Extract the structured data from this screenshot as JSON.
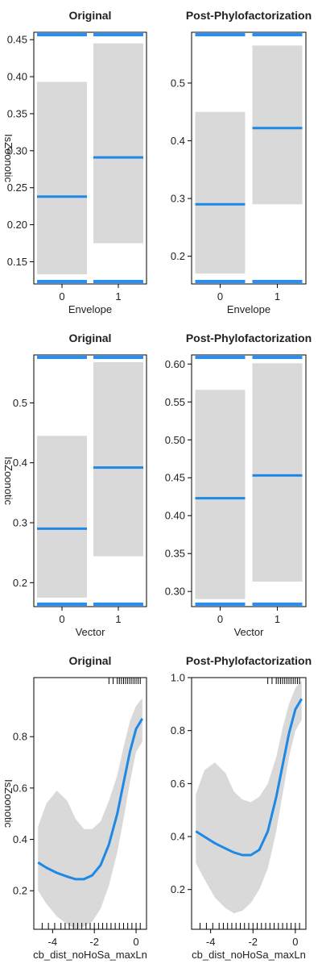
{
  "colors": {
    "fit": "#1e88e5",
    "band": "#d9d9d9",
    "rug": "#1e90ff",
    "axis": "#000000",
    "text": "#222222"
  },
  "chart_data": [
    {
      "type": "bar",
      "title": "Original",
      "xlabel": "Envelope",
      "ylabel": "IsZoonotic",
      "categories": [
        "0",
        "1"
      ],
      "fit": [
        0.238,
        0.291
      ],
      "lower": [
        0.133,
        0.175
      ],
      "upper": [
        0.393,
        0.445
      ],
      "ylim": [
        0.12,
        0.46
      ],
      "yticks": [
        0.15,
        0.2,
        0.25,
        0.3,
        0.35,
        0.4,
        0.45
      ],
      "ytick_labels": [
        "0.15",
        "0.20",
        "0.25",
        "0.30",
        "0.35",
        "0.40",
        "0.45"
      ]
    },
    {
      "type": "bar",
      "title": "Post-Phylofactorization",
      "xlabel": "Envelope",
      "ylabel": "",
      "categories": [
        "0",
        "1"
      ],
      "fit": [
        0.29,
        0.422
      ],
      "lower": [
        0.17,
        0.29
      ],
      "upper": [
        0.45,
        0.565
      ],
      "ylim": [
        0.152,
        0.588
      ],
      "yticks": [
        0.2,
        0.3,
        0.4,
        0.5
      ],
      "ytick_labels": [
        "0.2",
        "0.3",
        "0.4",
        "0.5"
      ]
    },
    {
      "type": "bar",
      "title": "Original",
      "xlabel": "Vector",
      "ylabel": "IsZoonotic",
      "categories": [
        "0",
        "1"
      ],
      "fit": [
        0.29,
        0.392
      ],
      "lower": [
        0.175,
        0.244
      ],
      "upper": [
        0.445,
        0.568
      ],
      "ylim": [
        0.16,
        0.58
      ],
      "yticks": [
        0.2,
        0.3,
        0.4,
        0.5
      ],
      "ytick_labels": [
        "0.2",
        "0.3",
        "0.4",
        "0.5"
      ]
    },
    {
      "type": "bar",
      "title": "Post-Phylofactorization",
      "xlabel": "Vector",
      "ylabel": "",
      "categories": [
        "0",
        "1"
      ],
      "fit": [
        0.423,
        0.453
      ],
      "lower": [
        0.29,
        0.313
      ],
      "upper": [
        0.566,
        0.601
      ],
      "ylim": [
        0.28,
        0.612
      ],
      "yticks": [
        0.3,
        0.35,
        0.4,
        0.45,
        0.5,
        0.55,
        0.6
      ],
      "ytick_labels": [
        "0.30",
        "0.35",
        "0.40",
        "0.45",
        "0.50",
        "0.55",
        "0.60"
      ]
    },
    {
      "type": "line",
      "title": "Original",
      "xlabel": "cb_dist_noHoSa_maxLn",
      "ylabel": "IsZoonotic",
      "x": [
        -4.7,
        -4.3,
        -3.8,
        -3.3,
        -2.9,
        -2.5,
        -2.1,
        -1.7,
        -1.3,
        -0.9,
        -0.6,
        -0.3,
        0.0,
        0.3
      ],
      "fit": [
        0.31,
        0.29,
        0.27,
        0.255,
        0.245,
        0.245,
        0.26,
        0.3,
        0.38,
        0.5,
        0.62,
        0.74,
        0.83,
        0.87
      ],
      "lower": [
        0.2,
        0.15,
        0.1,
        0.07,
        0.05,
        0.06,
        0.08,
        0.13,
        0.22,
        0.35,
        0.48,
        0.62,
        0.74,
        0.78
      ],
      "upper": [
        0.45,
        0.54,
        0.59,
        0.55,
        0.48,
        0.44,
        0.44,
        0.47,
        0.55,
        0.65,
        0.76,
        0.86,
        0.92,
        0.95
      ],
      "xlim": [
        -4.9,
        0.5
      ],
      "ylim": [
        0.05,
        1.03
      ],
      "xticks": [
        -4,
        -2,
        0
      ],
      "xtick_labels": [
        "-4",
        "-2",
        "0"
      ],
      "yticks": [
        0.2,
        0.4,
        0.6,
        0.8
      ],
      "ytick_labels": [
        "0.2",
        "0.4",
        "0.6",
        "0.8"
      ],
      "rug_top": [
        -1.3,
        -1.1,
        -0.9,
        -0.8,
        -0.7,
        -0.6,
        -0.5,
        -0.4,
        -0.3,
        -0.2,
        -0.1,
        0.0,
        0.1,
        0.2
      ],
      "rug_bottom": [
        -4.5,
        -4.2,
        -3.9,
        -3.6,
        -3.4,
        -3.2,
        -3.0,
        -2.8,
        -2.6,
        -2.4,
        -2.2,
        -2.0,
        -1.8,
        -1.6,
        -1.4,
        -1.2,
        -1.0,
        -0.8,
        -0.6,
        -0.4,
        -0.2,
        0.0,
        0.2
      ]
    },
    {
      "type": "line",
      "title": "Post-Phylofactorization",
      "xlabel": "cb_dist_noHoSa_maxLn",
      "ylabel": "",
      "x": [
        -4.7,
        -4.3,
        -3.8,
        -3.3,
        -2.9,
        -2.5,
        -2.1,
        -1.7,
        -1.3,
        -0.9,
        -0.6,
        -0.3,
        0.0,
        0.3
      ],
      "fit": [
        0.42,
        0.4,
        0.375,
        0.355,
        0.34,
        0.33,
        0.33,
        0.35,
        0.42,
        0.55,
        0.67,
        0.79,
        0.88,
        0.92
      ],
      "lower": [
        0.3,
        0.24,
        0.17,
        0.13,
        0.11,
        0.12,
        0.15,
        0.2,
        0.28,
        0.42,
        0.56,
        0.7,
        0.8,
        0.84
      ],
      "upper": [
        0.56,
        0.65,
        0.68,
        0.64,
        0.57,
        0.54,
        0.53,
        0.55,
        0.6,
        0.7,
        0.81,
        0.9,
        0.96,
        0.99
      ],
      "xlim": [
        -4.9,
        0.5
      ],
      "ylim": [
        0.05,
        1.0
      ],
      "xticks": [
        -4,
        -2,
        0
      ],
      "xtick_labels": [
        "-4",
        "-2",
        "0"
      ],
      "yticks": [
        0.2,
        0.4,
        0.6,
        0.8,
        1.0
      ],
      "ytick_labels": [
        "0.2",
        "0.4",
        "0.6",
        "0.8",
        "1.0"
      ],
      "rug_top": [
        -1.3,
        -1.1,
        -0.9,
        -0.8,
        -0.7,
        -0.6,
        -0.5,
        -0.4,
        -0.3,
        -0.2,
        -0.1,
        0.0,
        0.1,
        0.2
      ],
      "rug_bottom": [
        -4.5,
        -4.2,
        -3.9,
        -3.6,
        -3.4,
        -3.2,
        -3.0,
        -2.8,
        -2.6,
        -2.4,
        -2.2,
        -2.0,
        -1.8,
        -1.6,
        -1.4,
        -1.2,
        -1.0,
        -0.8,
        -0.6,
        -0.4,
        -0.2,
        0.0,
        0.2
      ]
    }
  ]
}
